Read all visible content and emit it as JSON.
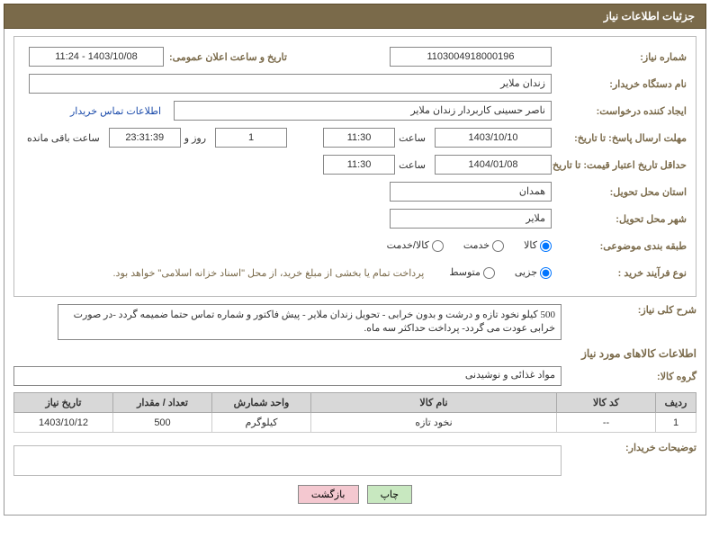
{
  "header": {
    "title": "جزئیات اطلاعات نیاز"
  },
  "fields": {
    "need_no_label": "شماره نیاز:",
    "need_no": "1103004918000196",
    "announce_label": "تاریخ و ساعت اعلان عمومی:",
    "announce_val": "1403/10/08 - 11:24",
    "buyer_org_label": "نام دستگاه خریدار:",
    "buyer_org": "زندان ملایر",
    "creator_label": "ایجاد کننده درخواست:",
    "creator": "ناصر حسینی کاربردار زندان ملایر",
    "contact_link": "اطلاعات تماس خریدار",
    "deadline_label": "مهلت ارسال پاسخ: تا تاریخ:",
    "deadline_date": "1403/10/10",
    "hour_word": "ساعت",
    "deadline_time": "11:30",
    "day_word": "روز و",
    "days_left": "1",
    "countdown": "23:31:39",
    "remain_word": "ساعت باقی مانده",
    "validity_label": "حداقل تاریخ اعتبار قیمت: تا تاریخ:",
    "validity_date": "1404/01/08",
    "validity_time": "11:30",
    "province_label": "استان محل تحویل:",
    "province": "همدان",
    "city_label": "شهر محل تحویل:",
    "city": "ملایر",
    "subject_class_label": "طبقه بندی موضوعی:",
    "r_goods": "کالا",
    "r_service": "خدمت",
    "r_both": "کالا/خدمت",
    "purchase_type_label": "نوع فرآیند خرید :",
    "r_partial": "جزیی",
    "r_medium": "متوسط",
    "purchase_note": "پرداخت تمام یا بخشی از مبلغ خرید، از محل \"اسناد خزانه اسلامی\" خواهد بود.",
    "desc_label": "شرح کلی نیاز:",
    "desc_text": "500 کیلو نخود تازه و درشت و بدون خرابی - تحویل زندان ملایر - پیش فاکتور و شماره تماس حتما ضمیمه گردد -در صورت خرابی عودت می گردد- پرداخت حداکثر سه ماه.",
    "goods_section": "اطلاعات کالاهای مورد نیاز",
    "group_label": "گروه کالا:",
    "group_val": "مواد غذائی و نوشیدنی",
    "buyer_remarks_label": "توضیحات خریدار:"
  },
  "table": {
    "headers": {
      "row": "ردیف",
      "code": "کد کالا",
      "name": "نام کالا",
      "unit": "واحد شمارش",
      "qty": "تعداد / مقدار",
      "need_date": "تاریخ نیاز"
    },
    "rows": [
      {
        "row": "1",
        "code": "--",
        "name": "نخود تازه",
        "unit": "کیلوگرم",
        "qty": "500",
        "need_date": "1403/10/12"
      }
    ]
  },
  "buttons": {
    "print": "چاپ",
    "back": "بازگشت"
  },
  "colors": {
    "accent": "#7a6a4a"
  }
}
